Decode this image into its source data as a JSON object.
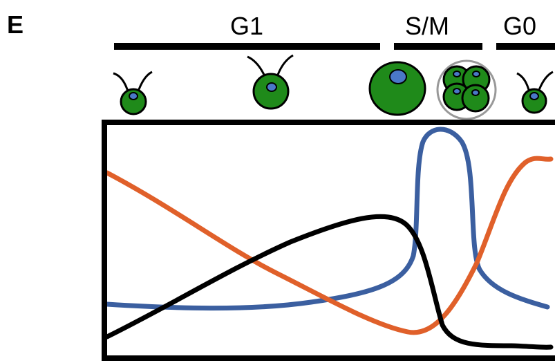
{
  "panel_label": "E",
  "phases": [
    "G1",
    "S/M",
    "G0"
  ]
}
